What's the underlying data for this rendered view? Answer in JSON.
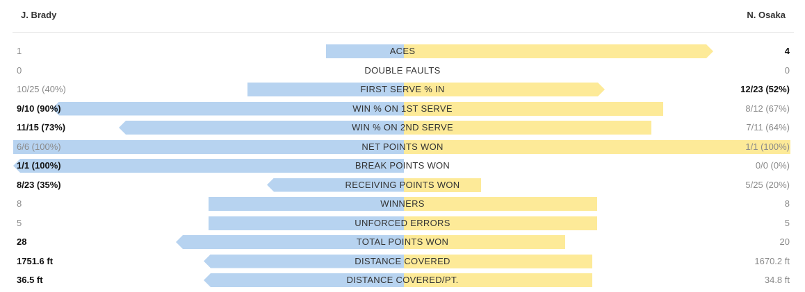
{
  "players": {
    "left": "J. Brady",
    "right": "N. Osaka"
  },
  "colors": {
    "left_bar": "#b7d3f0",
    "right_bar": "#fdea98",
    "lead_text": "#111111",
    "muted_text": "#8a8a8a"
  },
  "chart_data": {
    "type": "bar",
    "orientation": "diverging-horizontal",
    "series": [
      {
        "name": "J. Brady",
        "side": "left"
      },
      {
        "name": "N. Osaka",
        "side": "right"
      }
    ],
    "rows": [
      {
        "label": "ACES",
        "left_text": "1",
        "right_text": "4",
        "left_share": 0.2,
        "right_share": 0.8,
        "leader": "right"
      },
      {
        "label": "DOUBLE FAULTS",
        "left_text": "0",
        "right_text": "0",
        "left_share": 0,
        "right_share": 0,
        "leader": "none"
      },
      {
        "label": "FIRST SERVE % IN",
        "left_text": "10/25 (40%)",
        "right_text": "12/23 (52%)",
        "left_share": 0.4,
        "right_share": 0.52,
        "leader": "right"
      },
      {
        "label": "WIN % ON 1ST SERVE",
        "left_text": "9/10 (90%)",
        "right_text": "8/12 (67%)",
        "left_share": 0.9,
        "right_share": 0.67,
        "leader": "left"
      },
      {
        "label": "WIN % ON 2ND SERVE",
        "left_text": "11/15 (73%)",
        "right_text": "7/11 (64%)",
        "left_share": 0.73,
        "right_share": 0.64,
        "leader": "left"
      },
      {
        "label": "NET POINTS WON",
        "left_text": "6/6 (100%)",
        "right_text": "1/1 (100%)",
        "left_share": 1.0,
        "right_share": 1.0,
        "leader": "none"
      },
      {
        "label": "BREAK POINTS WON",
        "left_text": "1/1 (100%)",
        "right_text": "0/0 (0%)",
        "left_share": 1.0,
        "right_share": 0,
        "leader": "left"
      },
      {
        "label": "RECEIVING POINTS WON",
        "left_text": "8/23 (35%)",
        "right_text": "5/25 (20%)",
        "left_share": 0.35,
        "right_share": 0.2,
        "leader": "left"
      },
      {
        "label": "WINNERS",
        "left_text": "8",
        "right_text": "8",
        "left_share": 0.5,
        "right_share": 0.5,
        "leader": "none"
      },
      {
        "label": "UNFORCED ERRORS",
        "left_text": "5",
        "right_text": "5",
        "left_share": 0.5,
        "right_share": 0.5,
        "leader": "none"
      },
      {
        "label": "TOTAL POINTS WON",
        "left_text": "28",
        "right_text": "20",
        "left_share": 0.583,
        "right_share": 0.417,
        "leader": "left"
      },
      {
        "label": "DISTANCE COVERED",
        "left_text": "1751.6 ft",
        "right_text": "1670.2 ft",
        "left_share": 0.512,
        "right_share": 0.488,
        "leader": "left"
      },
      {
        "label": "DISTANCE COVERED/PT.",
        "left_text": "36.5 ft",
        "right_text": "34.8 ft",
        "left_share": 0.512,
        "right_share": 0.488,
        "leader": "left"
      }
    ]
  }
}
